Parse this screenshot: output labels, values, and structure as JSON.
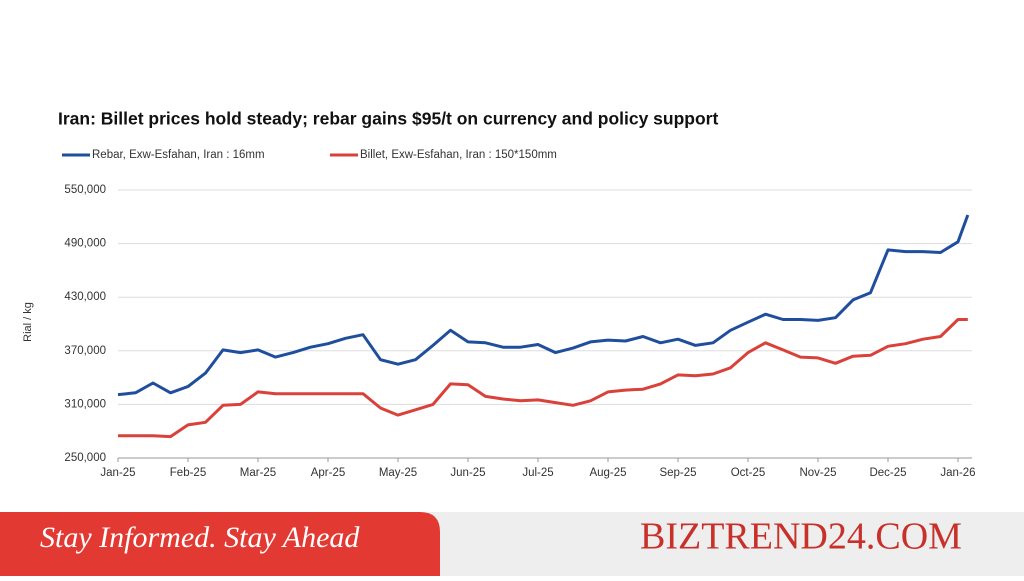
{
  "chart_data": {
    "type": "line",
    "title": "Iran: Billet prices hold steady; rebar gains $95/t on currency and policy support",
    "y_label": "Rial / kg",
    "x": [
      0,
      0.25,
      0.5,
      0.75,
      1,
      1.25,
      1.5,
      1.75,
      2,
      2.25,
      2.5,
      2.75,
      3,
      3.25,
      3.5,
      3.75,
      4,
      4.25,
      4.5,
      4.75,
      5,
      5.25,
      5.5,
      5.75,
      6,
      6.25,
      6.5,
      6.75,
      7,
      7.25,
      7.5,
      7.75,
      8,
      8.25,
      8.5,
      8.75,
      9,
      9.25,
      9.5,
      9.75,
      10,
      10.25,
      10.5,
      10.75,
      11,
      11.25,
      11.5,
      11.75,
      12,
      12.14
    ],
    "xlim": [
      0,
      12.2
    ],
    "xticks": [
      {
        "value": 0,
        "label": "Jan-25"
      },
      {
        "value": 1,
        "label": "Feb-25"
      },
      {
        "value": 2,
        "label": "Mar-25"
      },
      {
        "value": 3,
        "label": "Apr-25"
      },
      {
        "value": 4,
        "label": "May-25"
      },
      {
        "value": 5,
        "label": "Jun-25"
      },
      {
        "value": 6,
        "label": "Jul-25"
      },
      {
        "value": 7,
        "label": "Aug-25"
      },
      {
        "value": 8,
        "label": "Sep-25"
      },
      {
        "value": 9,
        "label": "Oct-25"
      },
      {
        "value": 10,
        "label": "Nov-25"
      },
      {
        "value": 11,
        "label": "Dec-25"
      },
      {
        "value": 12,
        "label": "Jan-26"
      }
    ],
    "ylim": [
      250000,
      550000
    ],
    "yticks": [
      {
        "value": 250000,
        "label": "250,000"
      },
      {
        "value": 310000,
        "label": "310,000"
      },
      {
        "value": 370000,
        "label": "370,000"
      },
      {
        "value": 430000,
        "label": "430,000"
      },
      {
        "value": 490000,
        "label": "490,000"
      },
      {
        "value": 550000,
        "label": "550,000"
      }
    ],
    "grid": true,
    "legend": "top",
    "series": [
      {
        "name": "Rebar, Exw-Esfahan, Iran : 16mm",
        "color": "#1f4e9c",
        "values": [
          321000,
          323000,
          334000,
          323000,
          330000,
          345000,
          371000,
          368000,
          371000,
          363000,
          368000,
          374000,
          378000,
          384000,
          388000,
          360000,
          355000,
          360000,
          376000,
          393000,
          380000,
          379000,
          374000,
          374000,
          377000,
          368000,
          373000,
          380000,
          382000,
          381000,
          386000,
          379000,
          383000,
          376000,
          379000,
          393000,
          402000,
          411000,
          405000,
          405000,
          404000,
          407000,
          427000,
          435000,
          483000,
          481000,
          481000,
          480000,
          492000,
          522000
        ]
      },
      {
        "name": "Billet, Exw-Esfahan, Iran : 150*150mm",
        "color": "#d9413a",
        "values": [
          275000,
          275000,
          275000,
          274000,
          287000,
          290000,
          309000,
          310000,
          324000,
          322000,
          322000,
          322000,
          322000,
          322000,
          322000,
          306000,
          298000,
          304000,
          310000,
          333000,
          332000,
          319000,
          316000,
          314000,
          315000,
          312000,
          309000,
          314000,
          324000,
          326000,
          327000,
          333000,
          343000,
          342000,
          344000,
          351000,
          368000,
          379000,
          371000,
          363000,
          362000,
          356000,
          364000,
          365000,
          375000,
          378000,
          383000,
          386000,
          405000,
          405000
        ]
      }
    ]
  },
  "banner": {
    "tagline": "Stay Informed. Stay Ahead",
    "brand": "BIZTREND24.COM"
  }
}
